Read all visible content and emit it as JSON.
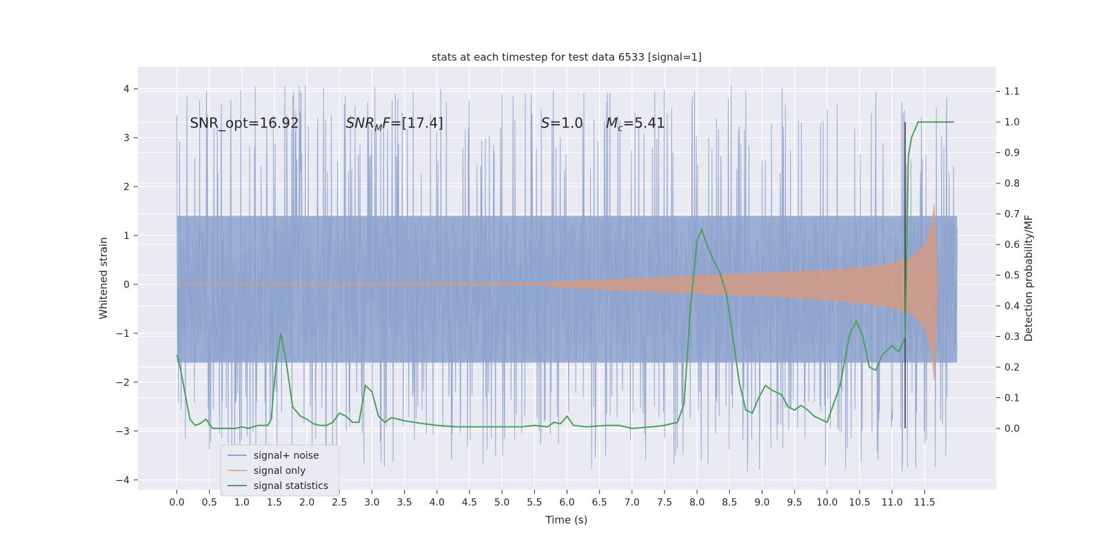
{
  "chart_data": {
    "type": "line",
    "title": "stats at each timestep for test data 6533 [signal=1]",
    "xlabel": "Time (s)",
    "ylabel": "Whitened strain",
    "y2label": "Detection probability/MF",
    "xlim": [
      -0.6,
      12.6
    ],
    "ylim": [
      -4.2,
      4.45
    ],
    "y2lim": [
      -0.2,
      1.18
    ],
    "xticks": [
      "0.0",
      "0.5",
      "1.0",
      "1.5",
      "2.0",
      "2.5",
      "3.0",
      "3.5",
      "4.0",
      "4.5",
      "5.0",
      "5.5",
      "6.0",
      "6.5",
      "7.0",
      "7.5",
      "8.0",
      "8.5",
      "9.0",
      "9.5",
      "10.0",
      "10.5",
      "11.0",
      "11.5"
    ],
    "yticks": [
      "4",
      "3",
      "2",
      "1",
      "0",
      "−1",
      "−2",
      "−3",
      "−4"
    ],
    "y2ticks": [
      "1.1",
      "1.0",
      "0.9",
      "0.8",
      "0.7",
      "0.6",
      "0.5",
      "0.4",
      "0.3",
      "0.2",
      "0.1",
      "0.0"
    ],
    "grid": true,
    "legend_position": "bottom-left",
    "annotations": [
      {
        "text": "SNR_opt=16.92",
        "x": 0.2,
        "y": 3.3
      },
      {
        "text": "SNR_M F=[17.4]",
        "x": 2.6,
        "y": 3.3
      },
      {
        "text": "S=1.0",
        "x": 5.6,
        "y": 3.3
      },
      {
        "text": "M_c=5.41",
        "x": 6.6,
        "y": 3.3
      }
    ],
    "vertical_line": {
      "x": 11.2,
      "y2_range": [
        0.0,
        1.0
      ]
    },
    "series": [
      {
        "name": "signal+ noise",
        "color": "#8da2cd",
        "axis": "left",
        "kind": "noise",
        "x_range": [
          0.0,
          12.0
        ],
        "typical_band": [
          -1.6,
          1.4
        ],
        "peak_range": [
          -3.85,
          4.1
        ]
      },
      {
        "name": "signal only",
        "color": "#dd9a7c",
        "axis": "left",
        "kind": "envelope",
        "x": [
          0.0,
          5.5,
          6.0,
          7.0,
          8.0,
          9.0,
          10.0,
          10.5,
          11.0,
          11.3,
          11.5,
          11.6,
          11.65,
          11.7
        ],
        "upper": [
          0.0,
          0.02,
          0.06,
          0.12,
          0.18,
          0.23,
          0.29,
          0.34,
          0.43,
          0.55,
          0.8,
          1.2,
          1.65,
          0.0
        ],
        "lower": [
          0.0,
          -0.02,
          -0.07,
          -0.13,
          -0.19,
          -0.24,
          -0.32,
          -0.38,
          -0.48,
          -0.6,
          -0.9,
          -1.35,
          -1.95,
          0.0
        ]
      },
      {
        "name": "signal statistics",
        "color": "#4aa05b",
        "axis": "right",
        "x": [
          0.0,
          0.05,
          0.12,
          0.2,
          0.28,
          0.35,
          0.45,
          0.55,
          0.7,
          0.9,
          1.0,
          1.1,
          1.25,
          1.3,
          1.4,
          1.45,
          1.52,
          1.6,
          1.68,
          1.78,
          1.9,
          2.0,
          2.1,
          2.2,
          2.3,
          2.4,
          2.5,
          2.6,
          2.7,
          2.8,
          2.9,
          3.0,
          3.1,
          3.2,
          3.3,
          3.5,
          3.8,
          4.0,
          4.3,
          4.6,
          5.0,
          5.3,
          5.5,
          5.7,
          5.8,
          5.9,
          6.0,
          6.1,
          6.3,
          6.6,
          6.8,
          7.0,
          7.3,
          7.5,
          7.7,
          7.8,
          7.9,
          8.0,
          8.07,
          8.15,
          8.25,
          8.35,
          8.45,
          8.55,
          8.65,
          8.75,
          8.85,
          8.95,
          9.05,
          9.15,
          9.3,
          9.4,
          9.5,
          9.6,
          9.7,
          9.8,
          9.9,
          10.0,
          10.2,
          10.35,
          10.45,
          10.55,
          10.65,
          10.75,
          10.85,
          11.0,
          11.1,
          11.15,
          11.2,
          11.25,
          11.3,
          11.4,
          11.5,
          11.7,
          11.9,
          11.95
        ],
        "y": [
          0.24,
          0.2,
          0.12,
          0.03,
          0.01,
          0.015,
          0.03,
          0.0,
          0.0,
          0.0,
          0.005,
          0.0,
          0.01,
          0.01,
          0.01,
          0.03,
          0.2,
          0.31,
          0.22,
          0.07,
          0.04,
          0.03,
          0.015,
          0.01,
          0.01,
          0.02,
          0.05,
          0.04,
          0.02,
          0.02,
          0.14,
          0.12,
          0.04,
          0.02,
          0.035,
          0.025,
          0.015,
          0.01,
          0.005,
          0.005,
          0.005,
          0.005,
          0.01,
          0.005,
          0.02,
          0.015,
          0.04,
          0.01,
          0.005,
          0.01,
          0.01,
          0.0,
          0.005,
          0.01,
          0.02,
          0.08,
          0.4,
          0.61,
          0.65,
          0.6,
          0.55,
          0.51,
          0.44,
          0.3,
          0.15,
          0.06,
          0.05,
          0.1,
          0.14,
          0.125,
          0.11,
          0.07,
          0.06,
          0.075,
          0.06,
          0.04,
          0.03,
          0.02,
          0.14,
          0.31,
          0.35,
          0.3,
          0.2,
          0.19,
          0.24,
          0.27,
          0.25,
          0.27,
          0.3,
          0.89,
          0.95,
          1.0,
          1.0,
          1.0,
          1.0,
          1.0
        ]
      }
    ]
  }
}
